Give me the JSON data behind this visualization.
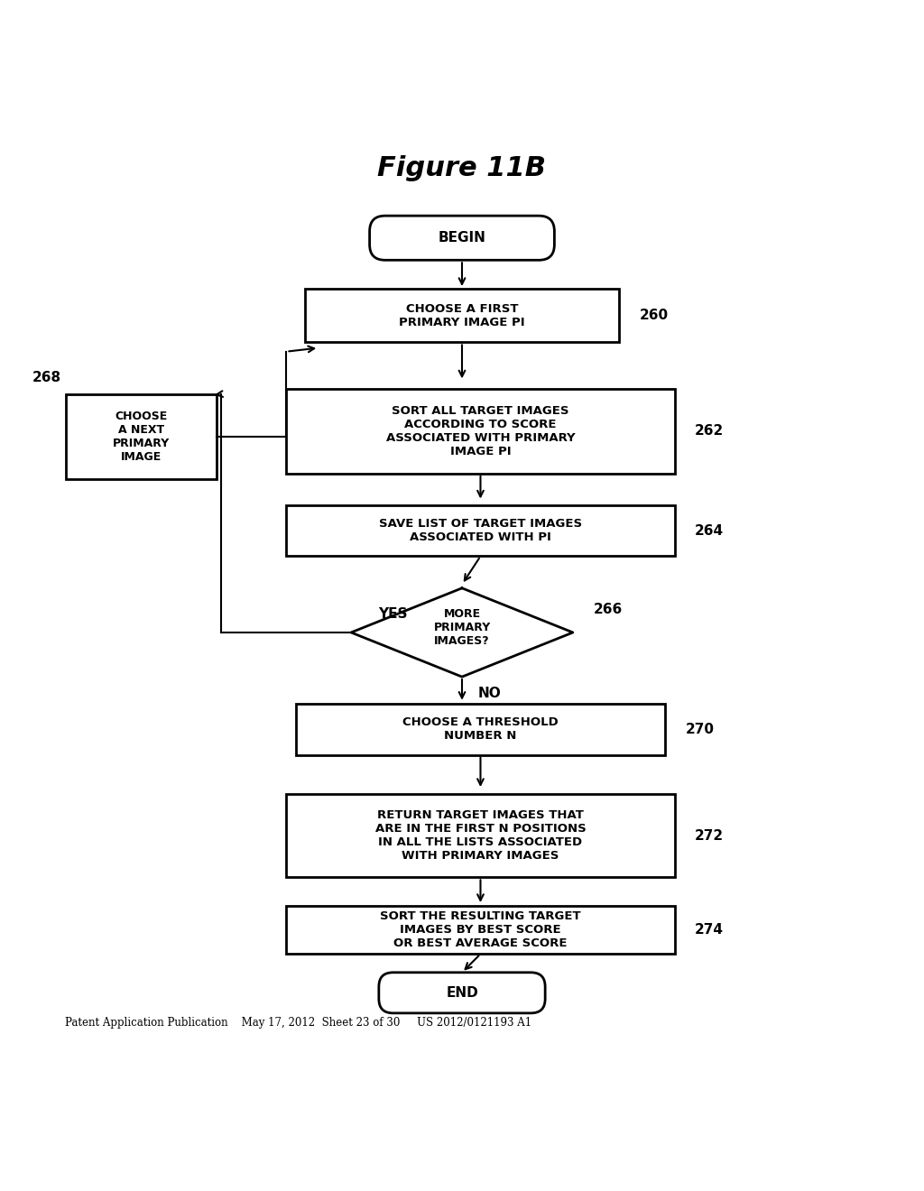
{
  "title_header": "Patent Application Publication    May 17, 2012  Sheet 23 of 30     US 2012/0121193 A1",
  "figure_label": "Figure 11B",
  "background_color": "#ffffff",
  "text_color": "#000000",
  "begin_text": "BEGIN",
  "end_text": "END",
  "node_260_text": "CHOOSE A FIRST\nPRIMARY IMAGE PI",
  "node_260_label": "260",
  "node_262_text": "SORT ALL TARGET IMAGES\nACCORDING TO SCORE\nASSOCIATED WITH PRIMARY\nIMAGE PI",
  "node_262_label": "262",
  "node_268_text": "CHOOSE\nA NEXT\nPRIMARY\nIMAGE",
  "node_268_label": "268",
  "node_264_text": "SAVE LIST OF TARGET IMAGES\nASSOCIATED WITH PI",
  "node_264_label": "264",
  "node_266_text": "MORE\nPRIMARY\nIMAGES?",
  "node_266_label": "266",
  "node_270_text": "CHOOSE A THRESHOLD\nNUMBER N",
  "node_270_label": "270",
  "node_272_text": "RETURN TARGET IMAGES THAT\nARE IN THE FIRST N POSITIONS\nIN ALL THE LISTS ASSOCIATED\nWITH PRIMARY IMAGES",
  "node_272_label": "272",
  "node_274_text": "SORT THE RESULTING TARGET\nIMAGES BY BEST SCORE\nOR BEST AVERAGE SCORE",
  "node_274_label": "274",
  "yes_label": "YES",
  "no_label": "NO",
  "lw": 2.0,
  "arrow_lw": 1.5,
  "font_size_node": 9.5,
  "font_size_label": 11,
  "font_size_header": 8.5,
  "font_size_figure": 22,
  "font_size_terminal": 11,
  "font_size_side": 9
}
